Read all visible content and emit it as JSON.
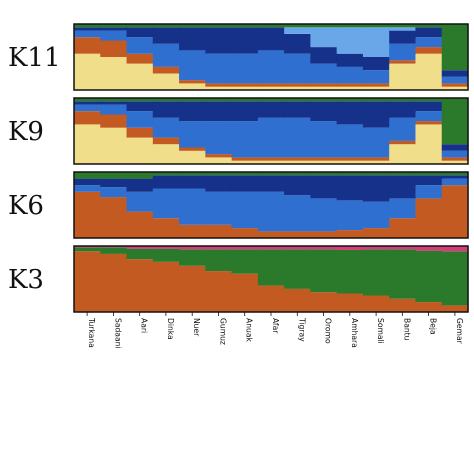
{
  "chart_data": [
    {
      "type": "stacked-bar",
      "title": "K3",
      "categories": [
        "Turkana",
        "Sadaani",
        "Aari",
        "Dinka",
        "Nuer",
        "Gumuz",
        "Anuak",
        "Afar",
        "Tigray",
        "Oromo",
        "Amhara",
        "Somali",
        "Bantu",
        "Beja",
        "Gemar"
      ],
      "series": [
        {
          "color": "#c25a22",
          "values": [
            0.92,
            0.88,
            0.8,
            0.76,
            0.7,
            0.62,
            0.58,
            0.4,
            0.35,
            0.3,
            0.28,
            0.25,
            0.2,
            0.15,
            0.1
          ]
        },
        {
          "color": "#2b7a2b",
          "values": [
            0.06,
            0.1,
            0.16,
            0.2,
            0.25,
            0.33,
            0.37,
            0.55,
            0.6,
            0.65,
            0.66,
            0.7,
            0.75,
            0.78,
            0.82
          ]
        },
        {
          "color": "#d63c7a",
          "values": [
            0.02,
            0.02,
            0.04,
            0.04,
            0.05,
            0.05,
            0.05,
            0.05,
            0.05,
            0.05,
            0.06,
            0.05,
            0.05,
            0.07,
            0.08
          ]
        }
      ]
    },
    {
      "type": "stacked-bar",
      "title": "K6",
      "categories": [
        "Turkana",
        "Sadaani",
        "Aari",
        "Dinka",
        "Nuer",
        "Gumuz",
        "Anuak",
        "Afar",
        "Tigray",
        "Oromo",
        "Amhara",
        "Somali",
        "Bantu",
        "Beja",
        "Gemar"
      ],
      "series": [
        {
          "color": "#c25a22",
          "values": [
            0.7,
            0.62,
            0.4,
            0.3,
            0.2,
            0.2,
            0.15,
            0.1,
            0.1,
            0.1,
            0.12,
            0.15,
            0.3,
            0.6,
            0.8
          ]
        },
        {
          "color": "#2f6fd0",
          "values": [
            0.1,
            0.15,
            0.3,
            0.45,
            0.55,
            0.5,
            0.55,
            0.6,
            0.55,
            0.5,
            0.45,
            0.4,
            0.3,
            0.2,
            0.1
          ]
        },
        {
          "color": "#16318a",
          "values": [
            0.1,
            0.13,
            0.2,
            0.2,
            0.2,
            0.25,
            0.25,
            0.25,
            0.3,
            0.35,
            0.38,
            0.4,
            0.35,
            0.15,
            0.05
          ]
        },
        {
          "color": "#2b7a2b",
          "values": [
            0.1,
            0.1,
            0.1,
            0.05,
            0.05,
            0.05,
            0.05,
            0.05,
            0.05,
            0.05,
            0.05,
            0.05,
            0.05,
            0.05,
            0.05
          ]
        }
      ]
    },
    {
      "type": "stacked-bar",
      "title": "K9",
      "categories": [
        "Turkana",
        "Sadaani",
        "Aari",
        "Dinka",
        "Nuer",
        "Gumuz",
        "Anuak",
        "Afar",
        "Tigray",
        "Oromo",
        "Amhara",
        "Somali",
        "Bantu",
        "Beja",
        "Gemar"
      ],
      "series": [
        {
          "color": "#f1de8a",
          "values": [
            0.6,
            0.55,
            0.4,
            0.3,
            0.2,
            0.1,
            0.05,
            0.05,
            0.05,
            0.05,
            0.05,
            0.05,
            0.3,
            0.6,
            0.05
          ]
        },
        {
          "color": "#c25a22",
          "values": [
            0.2,
            0.2,
            0.15,
            0.1,
            0.05,
            0.05,
            0.05,
            0.05,
            0.05,
            0.05,
            0.05,
            0.05,
            0.05,
            0.05,
            0.05
          ]
        },
        {
          "color": "#2f6fd0",
          "values": [
            0.1,
            0.15,
            0.25,
            0.3,
            0.4,
            0.5,
            0.55,
            0.6,
            0.6,
            0.55,
            0.5,
            0.45,
            0.35,
            0.15,
            0.1
          ]
        },
        {
          "color": "#16318a",
          "values": [
            0.05,
            0.05,
            0.15,
            0.25,
            0.3,
            0.3,
            0.3,
            0.25,
            0.25,
            0.3,
            0.35,
            0.4,
            0.25,
            0.15,
            0.1
          ]
        },
        {
          "color": "#2b7a2b",
          "values": [
            0.05,
            0.05,
            0.05,
            0.05,
            0.05,
            0.05,
            0.05,
            0.05,
            0.05,
            0.05,
            0.05,
            0.05,
            0.05,
            0.05,
            0.7
          ]
        }
      ]
    },
    {
      "type": "stacked-bar",
      "title": "K11",
      "categories": [
        "Turkana",
        "Sadaani",
        "Aari",
        "Dinka",
        "Nuer",
        "Gumuz",
        "Anuak",
        "Afar",
        "Tigray",
        "Oromo",
        "Amhara",
        "Somali",
        "Bantu",
        "Beja",
        "Gemar"
      ],
      "series": [
        {
          "color": "#f1de8a",
          "values": [
            0.55,
            0.5,
            0.4,
            0.25,
            0.1,
            0.05,
            0.05,
            0.05,
            0.05,
            0.05,
            0.05,
            0.05,
            0.4,
            0.55,
            0.05
          ]
        },
        {
          "color": "#c25a22",
          "values": [
            0.25,
            0.25,
            0.15,
            0.1,
            0.05,
            0.05,
            0.05,
            0.05,
            0.05,
            0.05,
            0.05,
            0.05,
            0.05,
            0.1,
            0.05
          ]
        },
        {
          "color": "#2f6fd0",
          "values": [
            0.1,
            0.15,
            0.25,
            0.35,
            0.45,
            0.45,
            0.45,
            0.5,
            0.45,
            0.3,
            0.25,
            0.2,
            0.25,
            0.15,
            0.1
          ]
        },
        {
          "color": "#16318a",
          "values": [
            0.05,
            0.05,
            0.15,
            0.25,
            0.35,
            0.4,
            0.4,
            0.35,
            0.3,
            0.25,
            0.2,
            0.2,
            0.2,
            0.15,
            0.1
          ]
        },
        {
          "color": "#6aa7e8",
          "values": [
            0.0,
            0.0,
            0.0,
            0.0,
            0.0,
            0.0,
            0.0,
            0.0,
            0.1,
            0.3,
            0.4,
            0.45,
            0.05,
            0.0,
            0.0
          ]
        },
        {
          "color": "#2b7a2b",
          "values": [
            0.05,
            0.05,
            0.05,
            0.05,
            0.05,
            0.05,
            0.05,
            0.05,
            0.05,
            0.05,
            0.05,
            0.05,
            0.05,
            0.05,
            0.7
          ]
        }
      ]
    }
  ],
  "panel_labels": [
    "K3",
    "K6",
    "K9",
    "K11"
  ],
  "population_labels": [
    "Turkana",
    "Sadaani",
    "Aari",
    "Dinka",
    "Nuer",
    "Gumuz",
    "Anuak",
    "Afar",
    "Tigray",
    "Oromo",
    "Amhara",
    "Somali",
    "Bantu",
    "Beja",
    "Gemar"
  ]
}
